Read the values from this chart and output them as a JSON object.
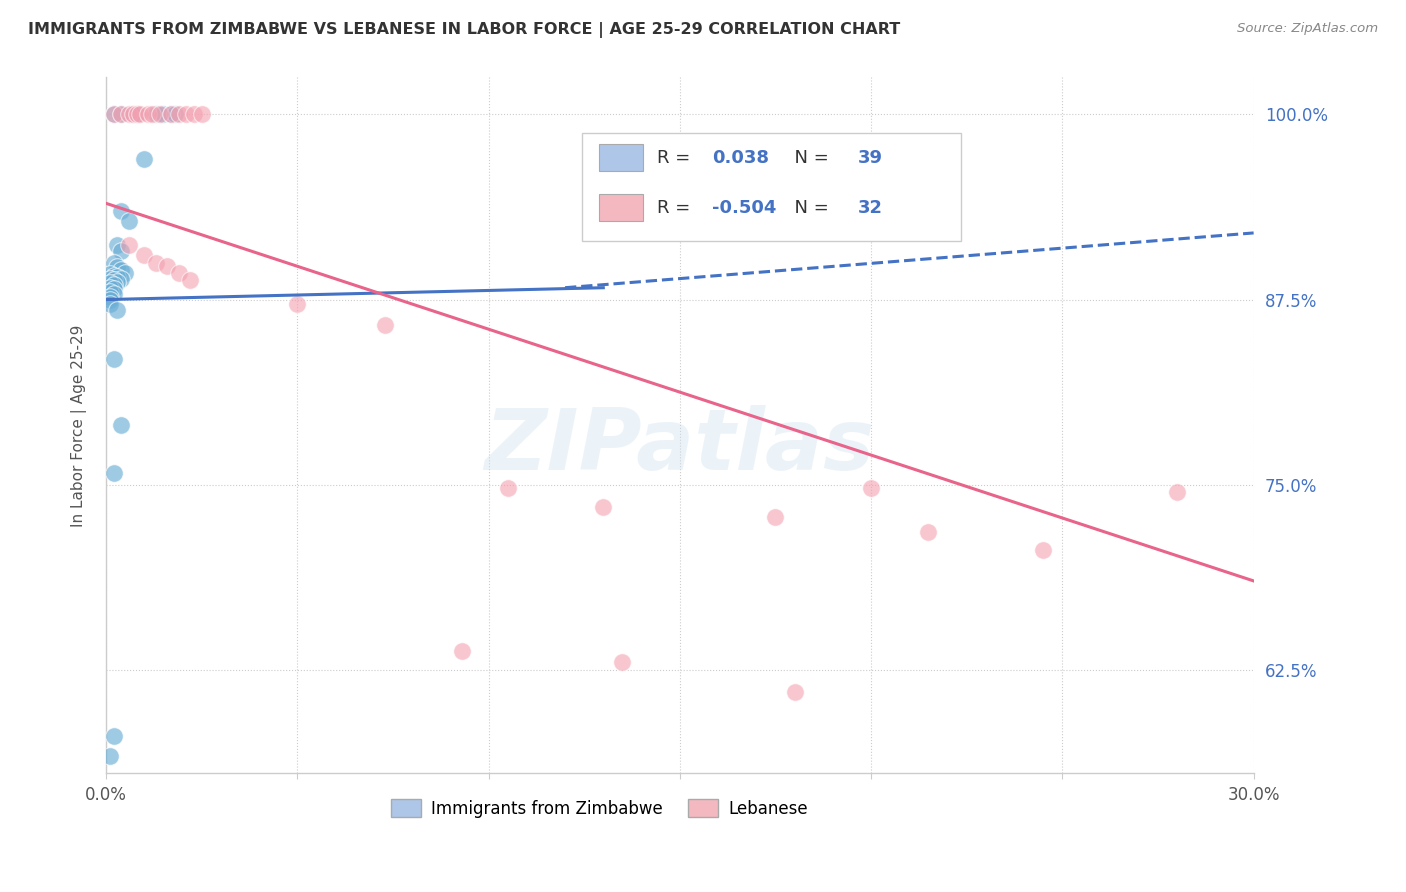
{
  "title": "IMMIGRANTS FROM ZIMBABWE VS LEBANESE IN LABOR FORCE | AGE 25-29 CORRELATION CHART",
  "source": "Source: ZipAtlas.com",
  "ylabel": "In Labor Force | Age 25-29",
  "xlim": [
    0.0,
    0.3
  ],
  "ylim": [
    0.555,
    1.025
  ],
  "xticks": [
    0.0,
    0.05,
    0.1,
    0.15,
    0.2,
    0.25,
    0.3
  ],
  "xtick_labels": [
    "0.0%",
    "",
    "",
    "",
    "",
    "",
    "30.0%"
  ],
  "ytick_positions": [
    0.625,
    0.75,
    0.875,
    1.0
  ],
  "ytick_labels": [
    "62.5%",
    "75.0%",
    "87.5%",
    "100.0%"
  ],
  "legend_entries": [
    {
      "label": "Immigrants from Zimbabwe",
      "facecolor": "#aec6e8",
      "R": "0.038",
      "N": "39"
    },
    {
      "label": "Lebanese",
      "facecolor": "#f4b8c1",
      "R": "-0.504",
      "N": "32"
    }
  ],
  "zimbabwe_scatter": [
    [
      0.002,
      1.0
    ],
    [
      0.004,
      1.0
    ],
    [
      0.007,
      1.0
    ],
    [
      0.008,
      1.0
    ],
    [
      0.013,
      1.0
    ],
    [
      0.015,
      1.0
    ],
    [
      0.017,
      1.0
    ],
    [
      0.018,
      1.0
    ],
    [
      0.01,
      0.97
    ],
    [
      0.004,
      0.935
    ],
    [
      0.006,
      0.928
    ],
    [
      0.003,
      0.912
    ],
    [
      0.004,
      0.908
    ],
    [
      0.002,
      0.9
    ],
    [
      0.003,
      0.897
    ],
    [
      0.004,
      0.895
    ],
    [
      0.005,
      0.893
    ],
    [
      0.001,
      0.892
    ],
    [
      0.002,
      0.891
    ],
    [
      0.003,
      0.89
    ],
    [
      0.004,
      0.889
    ],
    [
      0.001,
      0.889
    ],
    [
      0.002,
      0.888
    ],
    [
      0.003,
      0.887
    ],
    [
      0.001,
      0.886
    ],
    [
      0.002,
      0.885
    ],
    [
      0.001,
      0.883
    ],
    [
      0.002,
      0.882
    ],
    [
      0.001,
      0.88
    ],
    [
      0.002,
      0.879
    ],
    [
      0.001,
      0.877
    ],
    [
      0.001,
      0.875
    ],
    [
      0.001,
      0.872
    ],
    [
      0.003,
      0.868
    ],
    [
      0.002,
      0.835
    ],
    [
      0.004,
      0.79
    ],
    [
      0.002,
      0.758
    ],
    [
      0.002,
      0.58
    ],
    [
      0.001,
      0.567
    ]
  ],
  "lebanese_scatter": [
    [
      0.002,
      1.0
    ],
    [
      0.004,
      1.0
    ],
    [
      0.006,
      1.0
    ],
    [
      0.007,
      1.0
    ],
    [
      0.008,
      1.0
    ],
    [
      0.009,
      1.0
    ],
    [
      0.011,
      1.0
    ],
    [
      0.012,
      1.0
    ],
    [
      0.014,
      1.0
    ],
    [
      0.017,
      1.0
    ],
    [
      0.019,
      1.0
    ],
    [
      0.021,
      1.0
    ],
    [
      0.023,
      1.0
    ],
    [
      0.025,
      1.0
    ],
    [
      0.006,
      0.912
    ],
    [
      0.01,
      0.905
    ],
    [
      0.013,
      0.9
    ],
    [
      0.016,
      0.898
    ],
    [
      0.019,
      0.893
    ],
    [
      0.022,
      0.888
    ],
    [
      0.05,
      0.872
    ],
    [
      0.073,
      0.858
    ],
    [
      0.105,
      0.748
    ],
    [
      0.13,
      0.735
    ],
    [
      0.175,
      0.728
    ],
    [
      0.2,
      0.748
    ],
    [
      0.28,
      0.745
    ],
    [
      0.215,
      0.718
    ],
    [
      0.245,
      0.706
    ],
    [
      0.093,
      0.638
    ],
    [
      0.135,
      0.63
    ],
    [
      0.18,
      0.61
    ]
  ],
  "zimbabwe_line": {
    "x": [
      0.0,
      0.3
    ],
    "y": [
      0.875,
      0.895
    ],
    "color": "#4472c4",
    "linestyle": "-"
  },
  "zimbabwe_line_ext": {
    "x": [
      0.12,
      0.3
    ],
    "y": [
      0.885,
      0.92
    ],
    "color": "#4472c4",
    "linestyle": "--"
  },
  "lebanese_line": {
    "x": [
      0.0,
      0.3
    ],
    "y": [
      0.94,
      0.685
    ],
    "color": "#e8648a",
    "linestyle": "-"
  },
  "scatter_blue": "#6aaed6",
  "scatter_pink": "#f4a0b0",
  "background_color": "#ffffff",
  "grid_color": "#cccccc",
  "watermark": "ZIPatlas"
}
